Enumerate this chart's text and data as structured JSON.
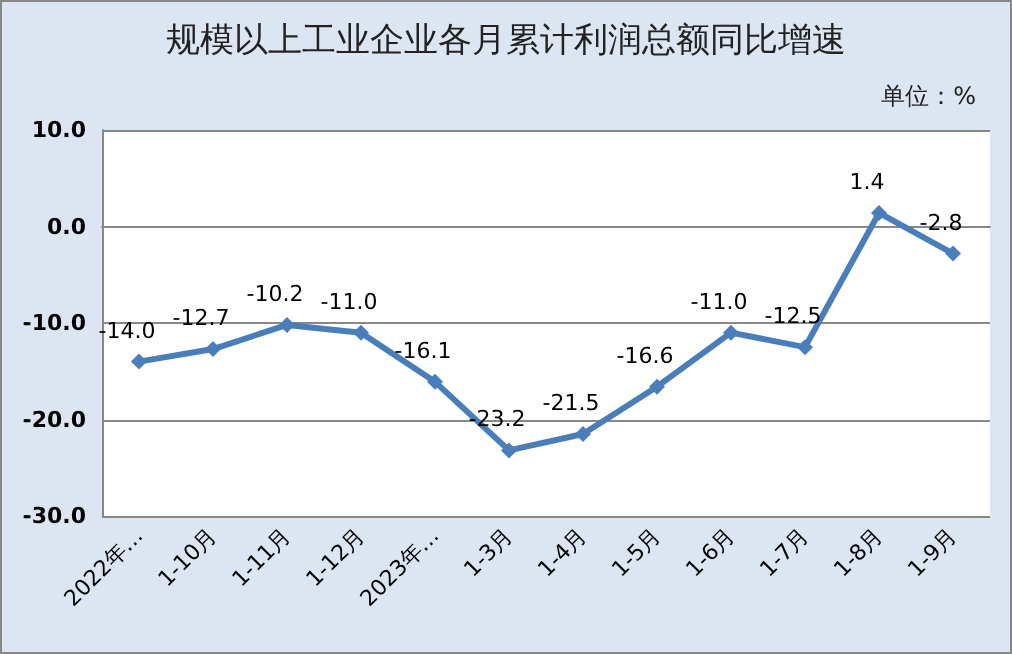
{
  "chart_data": {
    "type": "line",
    "title": "规模以上工业企业各月累计利润总额同比增速",
    "annotations": [
      "单位：%"
    ],
    "categories": [
      "2022年…",
      "1-10月",
      "1-11月",
      "1-12月",
      "2023年…",
      "1-3月",
      "1-4月",
      "1-5月",
      "1-6月",
      "1-7月",
      "1-8月",
      "1-9月"
    ],
    "series": [
      {
        "color": "#4a7ebb",
        "values": [
          -14.0,
          -12.7,
          -10.2,
          -11.0,
          -16.1,
          -23.2,
          -21.5,
          -16.6,
          -11.0,
          -12.5,
          1.4,
          -2.8
        ],
        "value_labels": [
          "-14.0",
          "-12.7",
          "-10.2",
          "-11.0",
          "-16.1",
          "-23.2",
          "-21.5",
          "-16.6",
          "-11.0",
          "-12.5",
          "1.4",
          "-2.8"
        ]
      }
    ],
    "ylim": [
      -30,
      10
    ],
    "yticks": [
      {
        "value": -30,
        "label": "-30.0"
      },
      {
        "value": -20,
        "label": "-20.0"
      },
      {
        "value": -10,
        "label": "-10.0"
      },
      {
        "value": 0,
        "label": "0.0"
      },
      {
        "value": 10,
        "label": "10.0"
      }
    ],
    "grid": "y",
    "marker": "diamond",
    "line_style": "solid"
  }
}
